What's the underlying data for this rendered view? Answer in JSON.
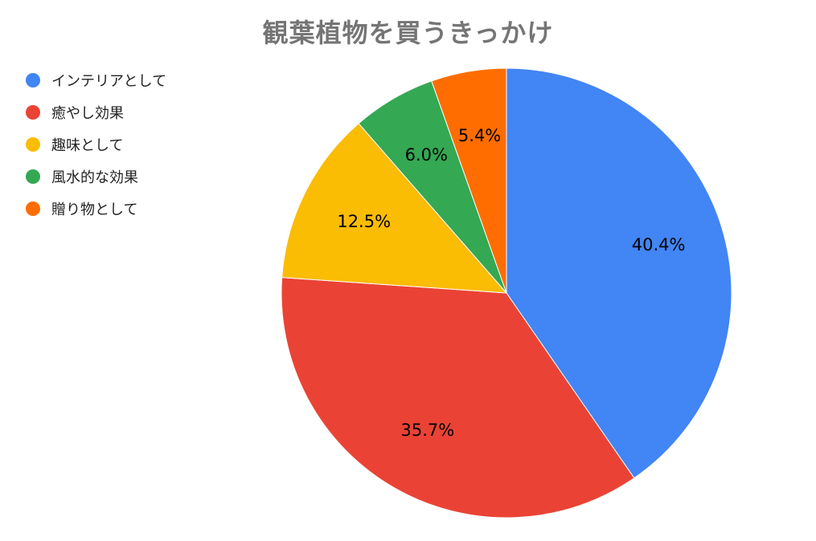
{
  "chart_data": {
    "type": "pie",
    "title": "観葉植物を買うきっかけ",
    "legend_position": "top-left",
    "slices": [
      {
        "label": "インテリアとして",
        "value": 40.4,
        "display": "40.4%",
        "color": "#4285f4"
      },
      {
        "label": "癒やし効果",
        "value": 35.7,
        "display": "35.7%",
        "color": "#ea4335"
      },
      {
        "label": "趣味として",
        "value": 12.5,
        "display": "12.5%",
        "color": "#fbbc04"
      },
      {
        "label": "風水的な効果",
        "value": 6.0,
        "display": "6.0%",
        "color": "#34a853"
      },
      {
        "label": "贈り物として",
        "value": 5.4,
        "display": "5.4%",
        "color": "#ff6d01"
      }
    ]
  }
}
